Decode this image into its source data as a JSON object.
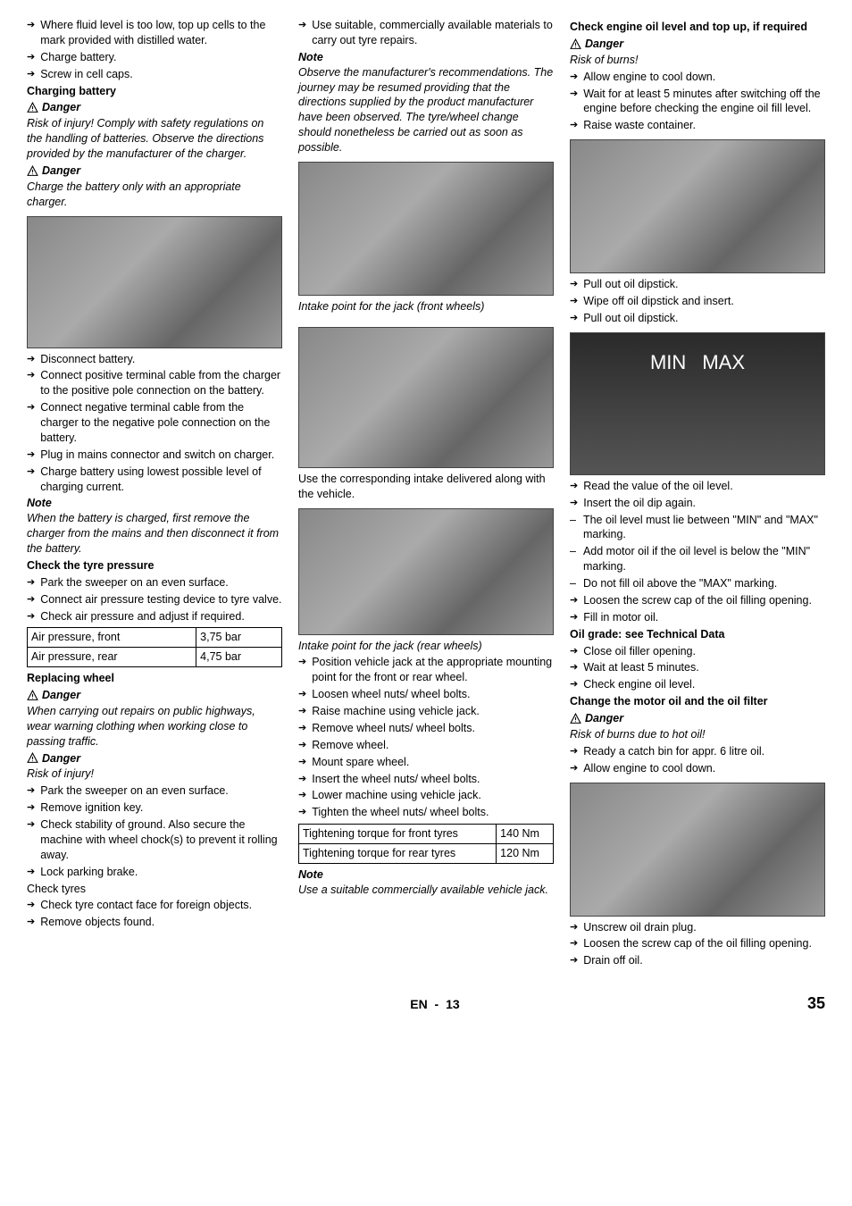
{
  "col1": {
    "items1": [
      "Where fluid level is too low, top up cells to the mark provided with distilled water.",
      "Charge battery.",
      "Screw in cell caps."
    ],
    "heading_charging": "Charging battery",
    "danger1": "Danger",
    "danger1_text": "Risk of injury! Comply with safety regulations on the handling of batteries. Observe the directions provided by the manufacturer of the charger.",
    "danger2": "Danger",
    "danger2_text": "Charge the battery only with an appropriate charger.",
    "img1_h": 148,
    "items2": [
      "Disconnect battery.",
      "Connect positive terminal cable from the charger to the positive pole connection on the battery.",
      "Connect negative terminal cable from the charger to the negative pole connection on the battery.",
      "Plug in mains connector and switch on charger.",
      "Charge battery using lowest possible level of charging current."
    ],
    "note1": "Note",
    "note1_text": "When the battery is charged, first remove the charger from the mains and then disconnect it from the battery.",
    "heading_tyre": "Check the tyre pressure",
    "items3": [
      "Park the sweeper on an even surface.",
      "Connect air pressure testing device to tyre valve.",
      "Check air pressure and adjust if required."
    ],
    "table1": {
      "rows": [
        [
          "Air pressure, front",
          "3,75 bar"
        ],
        [
          "Air pressure, rear",
          "4,75 bar"
        ]
      ]
    },
    "heading_wheel": "Replacing wheel",
    "danger3": "Danger",
    "danger3_text": "When carrying out repairs on public highways, wear warning clothing when working close to passing traffic.",
    "danger4": "Danger",
    "danger4_text": "Risk of injury!",
    "items4": [
      "Park the sweeper on an even surface.",
      "Remove ignition key.",
      "Check stability of ground. Also secure the machine with wheel chock(s) to prevent it rolling away.",
      "Lock parking brake."
    ],
    "checktyres": "Check tyres",
    "items5": [
      "Check tyre contact face for foreign objects.",
      "Remove objects found."
    ]
  },
  "col2": {
    "items1": [
      "Use suitable, commercially available materials to carry out tyre repairs."
    ],
    "note1": "Note",
    "note1_text": "Observe the manufacturer's recommendations. The journey may be resumed providing that the directions supplied by the product manufacturer have been observed. The tyre/wheel change should nonetheless be carried out as soon as possible.",
    "img1_h": 150,
    "cap1": "Intake point for the jack (front wheels)",
    "img2_h": 158,
    "text1": "Use the corresponding intake delivered along with the vehicle.",
    "img3_h": 142,
    "cap2": "Intake point for the jack (rear wheels)",
    "items2": [
      "Position vehicle jack at the appropriate mounting point for the front or rear wheel.",
      "Loosen wheel nuts/ wheel bolts.",
      "Raise machine using vehicle jack.",
      "Remove wheel nuts/ wheel bolts.",
      "Remove wheel.",
      "Mount spare wheel.",
      "Insert the wheel nuts/ wheel bolts.",
      "Lower machine using vehicle jack.",
      "Tighten the wheel nuts/ wheel bolts."
    ],
    "table1": {
      "rows": [
        [
          "Tightening torque for front tyres",
          "140 Nm"
        ],
        [
          "Tightening torque for rear tyres",
          "120 Nm"
        ]
      ]
    },
    "note2": "Note",
    "note2_text": "Use a suitable commercially available vehicle jack."
  },
  "col3": {
    "heading1": "Check engine oil level and top up, if required",
    "danger1": "Danger",
    "danger1_text": "Risk of burns!",
    "items1": [
      "Allow engine to cool down.",
      "Wait for at least 5 minutes after switching off the engine before checking the engine oil fill level.",
      "Raise waste container."
    ],
    "img1_h": 150,
    "items2": [
      "Pull out oil dipstick.",
      "Wipe off oil dipstick and insert.",
      "Pull out oil dipstick."
    ],
    "min": "MIN",
    "max": "MAX",
    "items3": [
      "Read the value of the oil level.",
      "Insert the oil dip again."
    ],
    "dashitems1": [
      "The oil level must lie between \"MIN\" and \"MAX\" marking.",
      "Add motor oil if the oil level is below the \"MIN\" marking.",
      "Do not fill oil above the \"MAX\" marking."
    ],
    "items4": [
      "Loosen the screw cap of the oil filling opening.",
      "Fill in motor oil."
    ],
    "heading2": "Oil grade: see Technical Data",
    "items5": [
      "Close oil filler opening.",
      "Wait at least 5 minutes.",
      "Check engine oil level."
    ],
    "heading3": "Change the motor oil and the oil filter",
    "danger2": "Danger",
    "danger2_text": "Risk of burns due to hot oil!",
    "items6": [
      "Ready a catch bin for appr. 6 litre oil.",
      "Allow engine to cool down."
    ],
    "img2_h": 150,
    "items7": [
      "Unscrew oil drain plug.",
      "Loosen the screw cap of the oil filling opening.",
      "Drain off oil."
    ]
  },
  "footer": {
    "lang": "EN",
    "sep": "-",
    "page_local": "13",
    "page_global": "35"
  }
}
